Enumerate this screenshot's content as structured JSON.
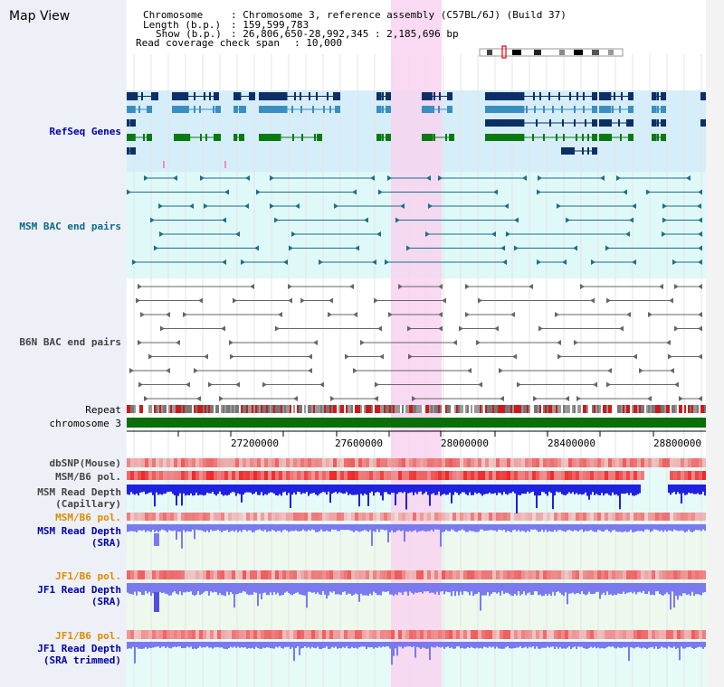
{
  "page_title": "Map View",
  "info": {
    "chromosome_label": "Chromosome",
    "chromosome_value": ": Chromosome 3, reference assembly (C57BL/6J) (Build 37)",
    "length_label": "Length (b.p.)",
    "length_value": ": 159,599,783",
    "show_label": "Show (b.p.)",
    "show_value": ": 26,806,650-28,992,345 : 2,185,696 bp",
    "coverage_label": "Read coverage check span",
    "coverage_value": ": 10,000"
  },
  "tracks": {
    "refseq": "RefSeq Genes",
    "msm_bac": "MSM BAC end pairs",
    "b6n_bac": "B6N BAC end pairs",
    "repeat": "Repeat",
    "chromosome": "chromosome 3",
    "dbsnp": "dbSNP(Mouse)",
    "msm_b6_pol_1": "MSM/B6 pol.",
    "msm_depth_cap_1": "MSM Read Depth",
    "msm_depth_cap_2": "(Capillary)",
    "msm_b6_pol_2": "MSM/B6 pol.",
    "msm_depth_sra_1": "MSM Read Depth",
    "msm_depth_sra_2": "(SRA)",
    "jf1_b6_pol_1": "JF1/B6 pol.",
    "jf1_depth_sra_1": "JF1 Read Depth",
    "jf1_depth_sra_2": "(SRA)",
    "jf1_b6_pol_2": "JF1/B6 pol.",
    "jf1_depth_trim_1": "JF1 Read Depth",
    "jf1_depth_trim_2": "(SRA trimmed)"
  },
  "ruler": {
    "ticks": [
      "27200000",
      "27600000",
      "28000000",
      "28400000",
      "28800000"
    ]
  },
  "colors": {
    "refseq_bg": "#d6eefa",
    "bac_bg": "#dff8f8",
    "highlight": "#f8d4f0",
    "gene_dark": "#0b2f66",
    "gene_light": "#3a8fbf",
    "gene_green": "#0a7a10",
    "chromosome_bar": "#0a6e0a",
    "depth_blue": "#2020e0",
    "depth_light": "#7a7aee"
  }
}
